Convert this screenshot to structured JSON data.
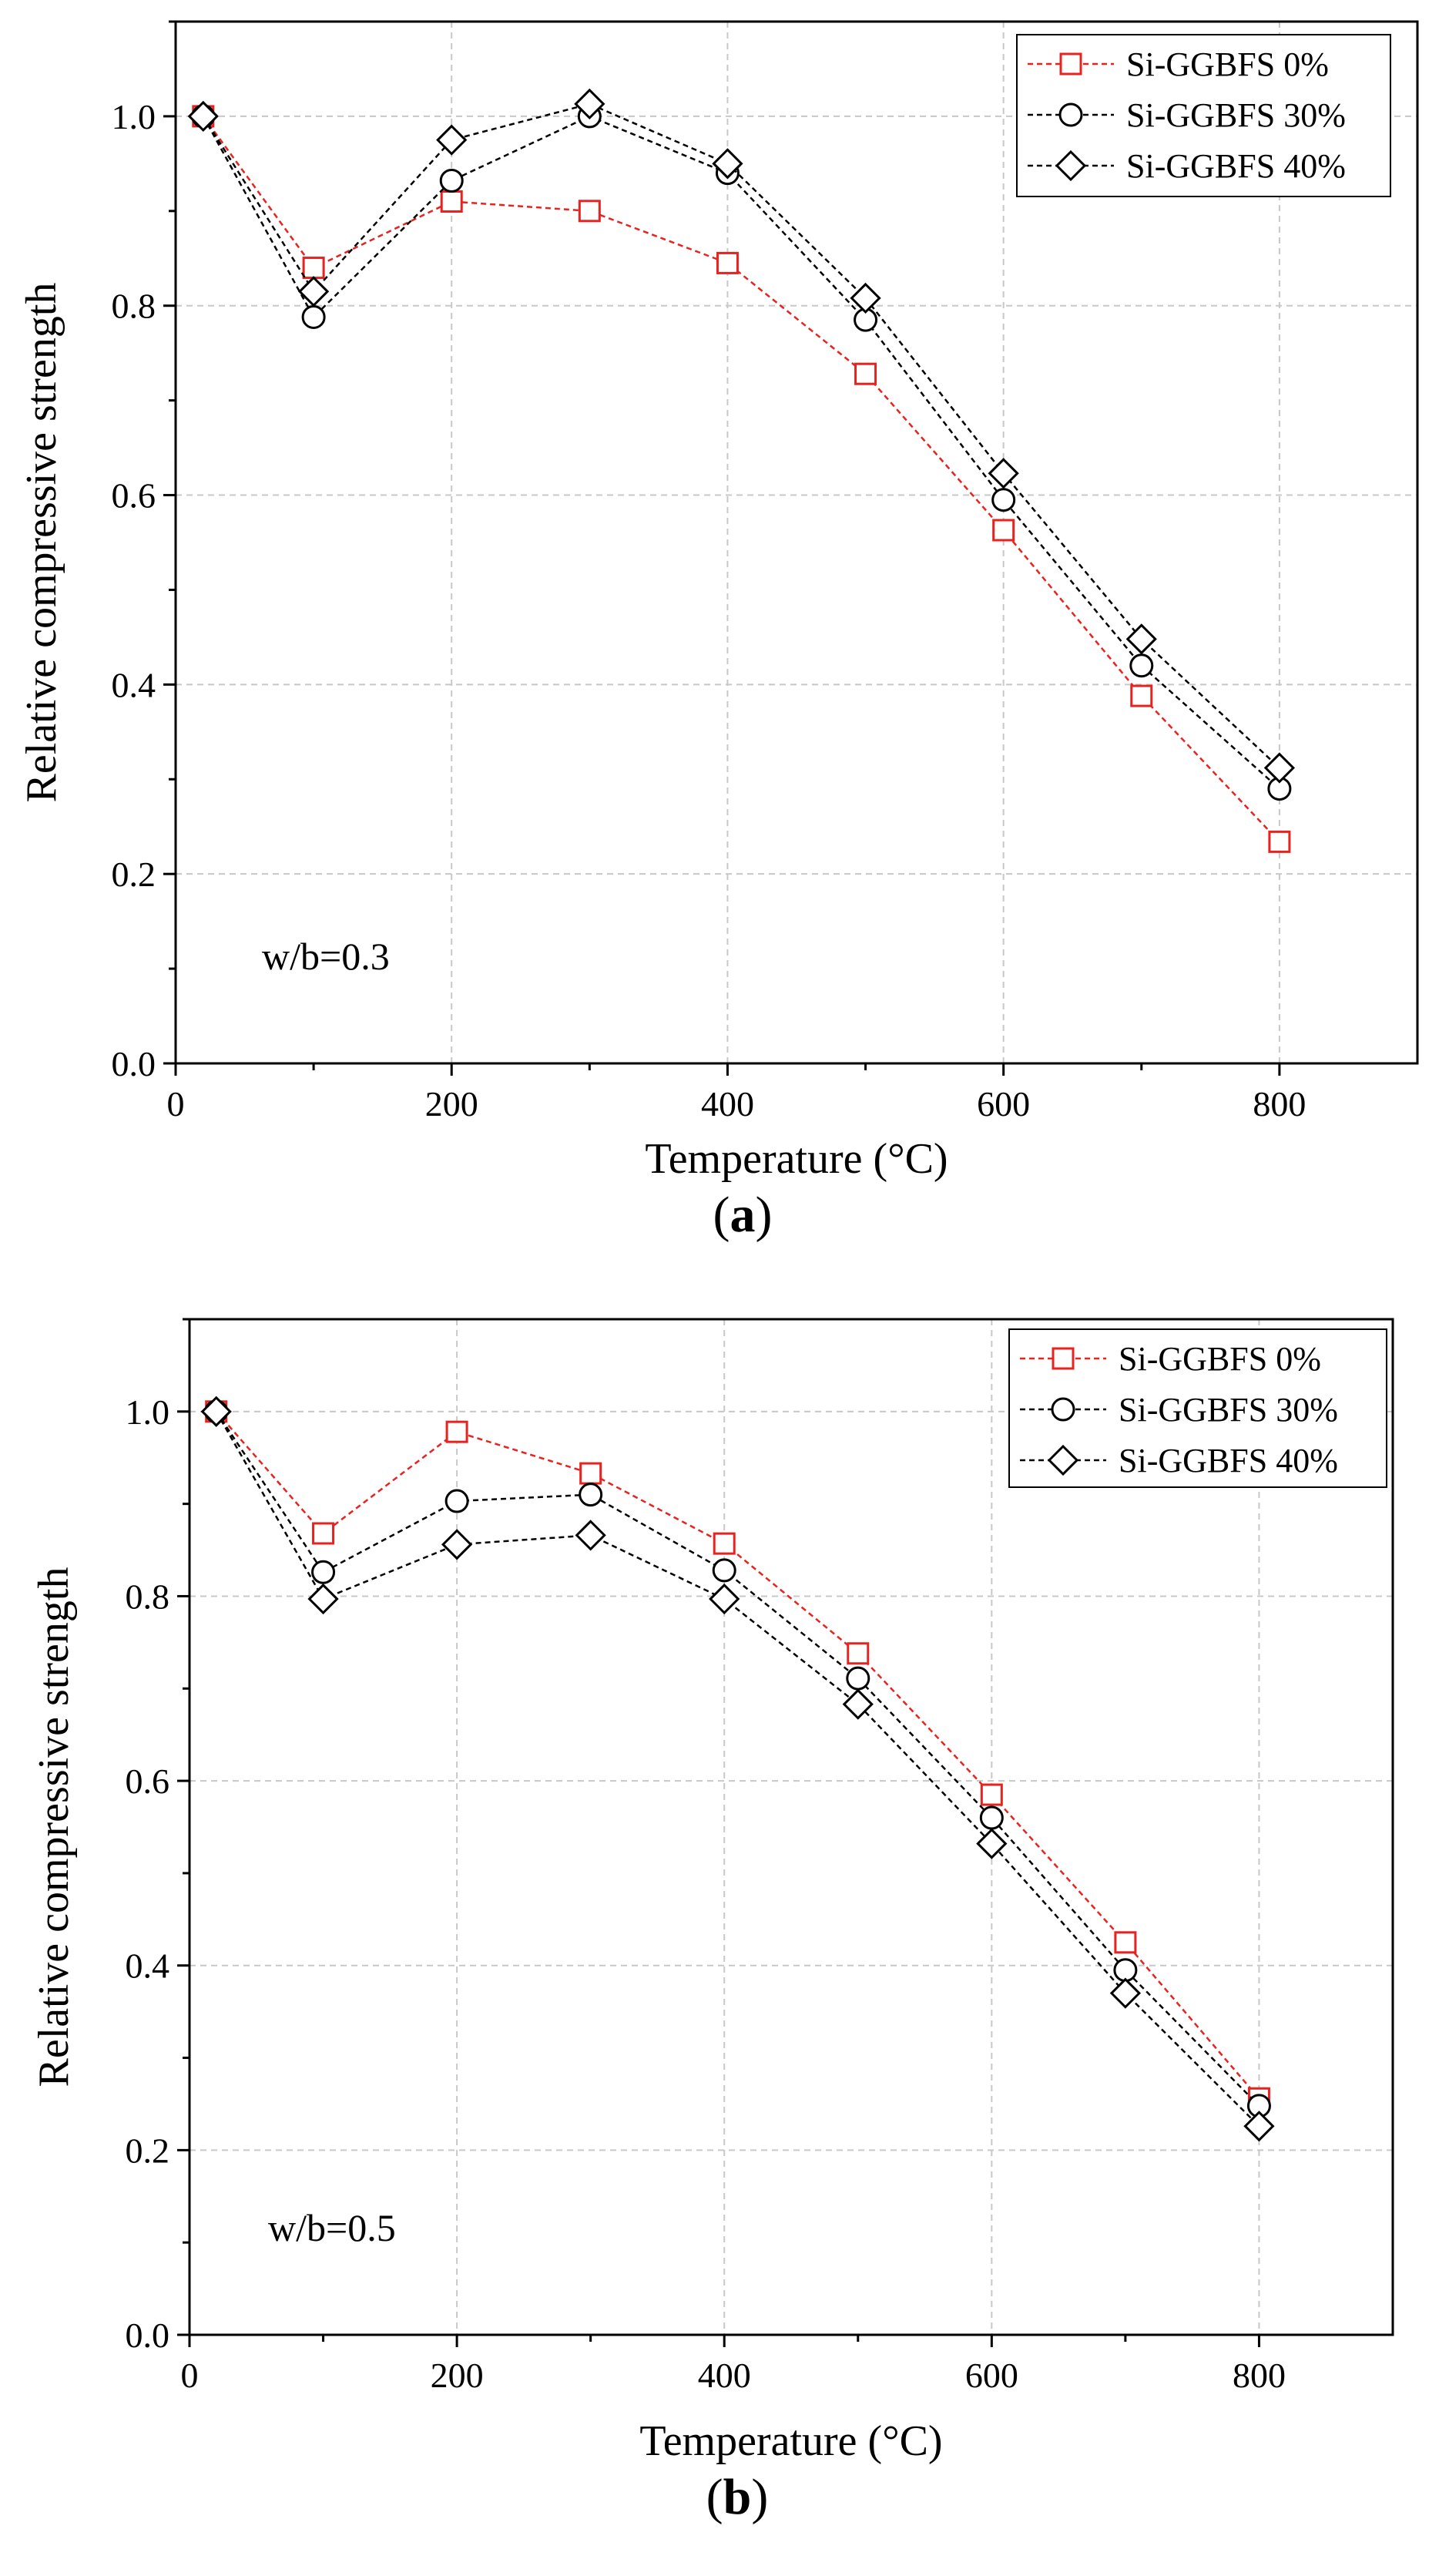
{
  "chart_data": [
    {
      "type": "line",
      "panel_label": "a",
      "annotation": "w/b=0.3",
      "xlabel": "Temperature (°C)",
      "ylabel": "Relative compressive strength",
      "xlim": [
        0,
        900
      ],
      "ylim": [
        0,
        1.1
      ],
      "xticks": [
        0,
        200,
        400,
        600,
        800
      ],
      "xtick_labels": [
        "0",
        "200",
        "400",
        "600",
        "800"
      ],
      "yticks": [
        0,
        0.2,
        0.4,
        0.6,
        0.8,
        1.0
      ],
      "ytick_labels": [
        "0.0",
        "0.2",
        "0.4",
        "0.6",
        "0.8",
        "1.0"
      ],
      "grid": true,
      "legend_position": "top-right",
      "x": [
        20,
        100,
        200,
        300,
        400,
        500,
        600,
        700,
        800
      ],
      "series": [
        {
          "name": "Si-GGBFS 0%",
          "marker": "square",
          "color": "#e8231f",
          "values": [
            1.0,
            0.84,
            0.91,
            0.9,
            0.845,
            0.728,
            0.563,
            0.388,
            0.234
          ]
        },
        {
          "name": "Si-GGBFS 30%",
          "marker": "circle",
          "color": "#000000",
          "values": [
            1.0,
            0.788,
            0.932,
            1.0,
            0.94,
            0.785,
            0.595,
            0.42,
            0.29
          ]
        },
        {
          "name": "Si-GGBFS 40%",
          "marker": "diamond",
          "color": "#000000",
          "values": [
            1.0,
            0.815,
            0.975,
            1.013,
            0.95,
            0.808,
            0.623,
            0.448,
            0.312
          ]
        }
      ]
    },
    {
      "type": "line",
      "panel_label": "b",
      "annotation": "w/b=0.5",
      "xlabel": "Temperature (°C)",
      "ylabel": "Relative compressive strength",
      "xlim": [
        0,
        900
      ],
      "ylim": [
        0,
        1.1
      ],
      "xticks": [
        0,
        200,
        400,
        600,
        800
      ],
      "xtick_labels": [
        "0",
        "200",
        "400",
        "600",
        "800"
      ],
      "yticks": [
        0,
        0.2,
        0.4,
        0.6,
        0.8,
        1.0
      ],
      "ytick_labels": [
        "0.0",
        "0.2",
        "0.4",
        "0.6",
        "0.8",
        "1.0"
      ],
      "grid": true,
      "legend_position": "top-right",
      "x": [
        20,
        100,
        200,
        300,
        400,
        500,
        600,
        700,
        800
      ],
      "series": [
        {
          "name": "Si-GGBFS 0%",
          "marker": "square",
          "color": "#e8231f",
          "values": [
            1.0,
            0.868,
            0.978,
            0.933,
            0.857,
            0.738,
            0.585,
            0.425,
            0.256
          ]
        },
        {
          "name": "Si-GGBFS 30%",
          "marker": "circle",
          "color": "#000000",
          "values": [
            1.0,
            0.826,
            0.903,
            0.91,
            0.828,
            0.711,
            0.56,
            0.395,
            0.248
          ]
        },
        {
          "name": "Si-GGBFS 40%",
          "marker": "diamond",
          "color": "#000000",
          "values": [
            1.0,
            0.797,
            0.856,
            0.866,
            0.797,
            0.683,
            0.532,
            0.37,
            0.226
          ]
        }
      ]
    }
  ]
}
